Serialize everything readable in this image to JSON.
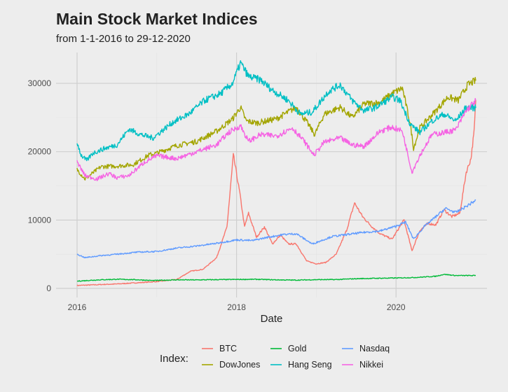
{
  "chart_data": {
    "type": "line",
    "title": "Main Stock Market Indices",
    "subtitle": "from 1-1-2016 to 29-12-2020",
    "xlabel": "Date",
    "ylabel": "",
    "xlim": [
      2016.0,
      2021.0
    ],
    "ylim": [
      0,
      34000
    ],
    "x_ticks": [
      2016,
      2018,
      2020
    ],
    "x_tick_labels": [
      "2016",
      "2018",
      "2020"
    ],
    "y_ticks": [
      0,
      10000,
      20000,
      30000
    ],
    "y_tick_labels": [
      "0",
      "10000",
      "20000",
      "30000"
    ],
    "grid": true,
    "legend": {
      "title": "Index:",
      "position": "bottom"
    },
    "series": [
      {
        "name": "BTC",
        "color": "#f8766d",
        "points": [
          [
            2016.0,
            430
          ],
          [
            2016.5,
            650
          ],
          [
            2017.0,
            1000
          ],
          [
            2017.25,
            1300
          ],
          [
            2017.42,
            2500
          ],
          [
            2017.58,
            2800
          ],
          [
            2017.75,
            4500
          ],
          [
            2017.88,
            9000
          ],
          [
            2017.96,
            19500
          ],
          [
            2018.04,
            14000
          ],
          [
            2018.1,
            9000
          ],
          [
            2018.15,
            11000
          ],
          [
            2018.25,
            7500
          ],
          [
            2018.35,
            9000
          ],
          [
            2018.45,
            6500
          ],
          [
            2018.55,
            7800
          ],
          [
            2018.65,
            6500
          ],
          [
            2018.75,
            6500
          ],
          [
            2018.88,
            4000
          ],
          [
            2019.0,
            3600
          ],
          [
            2019.12,
            3800
          ],
          [
            2019.25,
            5000
          ],
          [
            2019.38,
            8500
          ],
          [
            2019.48,
            12500
          ],
          [
            2019.58,
            10500
          ],
          [
            2019.7,
            9000
          ],
          [
            2019.8,
            8000
          ],
          [
            2019.95,
            7200
          ],
          [
            2020.1,
            10000
          ],
          [
            2020.2,
            5500
          ],
          [
            2020.3,
            8500
          ],
          [
            2020.4,
            9500
          ],
          [
            2020.5,
            9300
          ],
          [
            2020.6,
            11500
          ],
          [
            2020.7,
            10500
          ],
          [
            2020.8,
            11000
          ],
          [
            2020.88,
            17000
          ],
          [
            2020.94,
            19000
          ],
          [
            2020.98,
            23000
          ],
          [
            2021.0,
            27500
          ]
        ]
      },
      {
        "name": "DowJones",
        "color": "#a3a500",
        "points": [
          [
            2016.0,
            17400
          ],
          [
            2016.1,
            16000
          ],
          [
            2016.3,
            17800
          ],
          [
            2016.5,
            17900
          ],
          [
            2016.7,
            18100
          ],
          [
            2016.9,
            19500
          ],
          [
            2017.0,
            19800
          ],
          [
            2017.25,
            20900
          ],
          [
            2017.5,
            21500
          ],
          [
            2017.75,
            23000
          ],
          [
            2017.95,
            24800
          ],
          [
            2018.05,
            26500
          ],
          [
            2018.12,
            24500
          ],
          [
            2018.25,
            24200
          ],
          [
            2018.5,
            24800
          ],
          [
            2018.75,
            26500
          ],
          [
            2018.9,
            24000
          ],
          [
            2018.98,
            22500
          ],
          [
            2019.1,
            25500
          ],
          [
            2019.3,
            26500
          ],
          [
            2019.45,
            25000
          ],
          [
            2019.6,
            27000
          ],
          [
            2019.8,
            27200
          ],
          [
            2019.95,
            28500
          ],
          [
            2020.08,
            29300
          ],
          [
            2020.18,
            24000
          ],
          [
            2020.22,
            20500
          ],
          [
            2020.3,
            23500
          ],
          [
            2020.5,
            26000
          ],
          [
            2020.65,
            28000
          ],
          [
            2020.78,
            27500
          ],
          [
            2020.9,
            29800
          ],
          [
            2021.0,
            30400
          ]
        ]
      },
      {
        "name": "Gold",
        "color": "#00ba38",
        "points": [
          [
            2016.0,
            1060
          ],
          [
            2016.25,
            1240
          ],
          [
            2016.5,
            1340
          ],
          [
            2016.75,
            1270
          ],
          [
            2016.95,
            1150
          ],
          [
            2017.25,
            1250
          ],
          [
            2017.5,
            1240
          ],
          [
            2017.75,
            1280
          ],
          [
            2018.0,
            1310
          ],
          [
            2018.25,
            1330
          ],
          [
            2018.5,
            1250
          ],
          [
            2018.75,
            1210
          ],
          [
            2019.0,
            1280
          ],
          [
            2019.25,
            1290
          ],
          [
            2019.5,
            1420
          ],
          [
            2019.75,
            1480
          ],
          [
            2020.0,
            1520
          ],
          [
            2020.25,
            1600
          ],
          [
            2020.5,
            1780
          ],
          [
            2020.6,
            2060
          ],
          [
            2020.75,
            1880
          ],
          [
            2021.0,
            1880
          ]
        ]
      },
      {
        "name": "Hang Seng",
        "color": "#00bfc4",
        "points": [
          [
            2016.0,
            21400
          ],
          [
            2016.05,
            19500
          ],
          [
            2016.12,
            18700
          ],
          [
            2016.2,
            19800
          ],
          [
            2016.35,
            20500
          ],
          [
            2016.5,
            21000
          ],
          [
            2016.65,
            23300
          ],
          [
            2016.8,
            22500
          ],
          [
            2016.95,
            22000
          ],
          [
            2017.2,
            24300
          ],
          [
            2017.4,
            25500
          ],
          [
            2017.6,
            27500
          ],
          [
            2017.8,
            28500
          ],
          [
            2017.95,
            30000
          ],
          [
            2018.05,
            33000
          ],
          [
            2018.15,
            31000
          ],
          [
            2018.3,
            30500
          ],
          [
            2018.45,
            29000
          ],
          [
            2018.65,
            27500
          ],
          [
            2018.8,
            25500
          ],
          [
            2018.95,
            25800
          ],
          [
            2019.15,
            28800
          ],
          [
            2019.3,
            29800
          ],
          [
            2019.45,
            27500
          ],
          [
            2019.6,
            26000
          ],
          [
            2019.75,
            26500
          ],
          [
            2019.95,
            28000
          ],
          [
            2020.05,
            27500
          ],
          [
            2020.18,
            24000
          ],
          [
            2020.3,
            22800
          ],
          [
            2020.45,
            24500
          ],
          [
            2020.6,
            25500
          ],
          [
            2020.75,
            24500
          ],
          [
            2020.88,
            26500
          ],
          [
            2021.0,
            26400
          ]
        ]
      },
      {
        "name": "Nasdaq",
        "color": "#619cff",
        "points": [
          [
            2016.0,
            5000
          ],
          [
            2016.1,
            4500
          ],
          [
            2016.3,
            4800
          ],
          [
            2016.5,
            5000
          ],
          [
            2016.75,
            5300
          ],
          [
            2017.0,
            5400
          ],
          [
            2017.25,
            5900
          ],
          [
            2017.5,
            6200
          ],
          [
            2017.75,
            6600
          ],
          [
            2018.0,
            7100
          ],
          [
            2018.2,
            7000
          ],
          [
            2018.4,
            7500
          ],
          [
            2018.6,
            7900
          ],
          [
            2018.75,
            8000
          ],
          [
            2018.95,
            6500
          ],
          [
            2019.2,
            7600
          ],
          [
            2019.4,
            7900
          ],
          [
            2019.6,
            8200
          ],
          [
            2019.8,
            8400
          ],
          [
            2020.0,
            9100
          ],
          [
            2020.12,
            9700
          ],
          [
            2020.22,
            7200
          ],
          [
            2020.35,
            9000
          ],
          [
            2020.5,
            10500
          ],
          [
            2020.62,
            11700
          ],
          [
            2020.75,
            11100
          ],
          [
            2020.88,
            12000
          ],
          [
            2021.0,
            12900
          ]
        ]
      },
      {
        "name": "Nikkei",
        "color": "#f564e3",
        "points": [
          [
            2016.0,
            18500
          ],
          [
            2016.1,
            16500
          ],
          [
            2016.25,
            16000
          ],
          [
            2016.4,
            16800
          ],
          [
            2016.5,
            16200
          ],
          [
            2016.65,
            16500
          ],
          [
            2016.85,
            18500
          ],
          [
            2017.0,
            19400
          ],
          [
            2017.25,
            19000
          ],
          [
            2017.5,
            20000
          ],
          [
            2017.75,
            21000
          ],
          [
            2017.9,
            22800
          ],
          [
            2018.05,
            23800
          ],
          [
            2018.15,
            21500
          ],
          [
            2018.3,
            22500
          ],
          [
            2018.5,
            22300
          ],
          [
            2018.7,
            23500
          ],
          [
            2018.85,
            21500
          ],
          [
            2018.97,
            19500
          ],
          [
            2019.1,
            21400
          ],
          [
            2019.3,
            22000
          ],
          [
            2019.45,
            21000
          ],
          [
            2019.6,
            20800
          ],
          [
            2019.8,
            23000
          ],
          [
            2019.95,
            23600
          ],
          [
            2020.08,
            23000
          ],
          [
            2020.2,
            17000
          ],
          [
            2020.3,
            19500
          ],
          [
            2020.45,
            22500
          ],
          [
            2020.6,
            22800
          ],
          [
            2020.75,
            23200
          ],
          [
            2020.88,
            26000
          ],
          [
            2021.0,
            27500
          ]
        ]
      }
    ]
  }
}
